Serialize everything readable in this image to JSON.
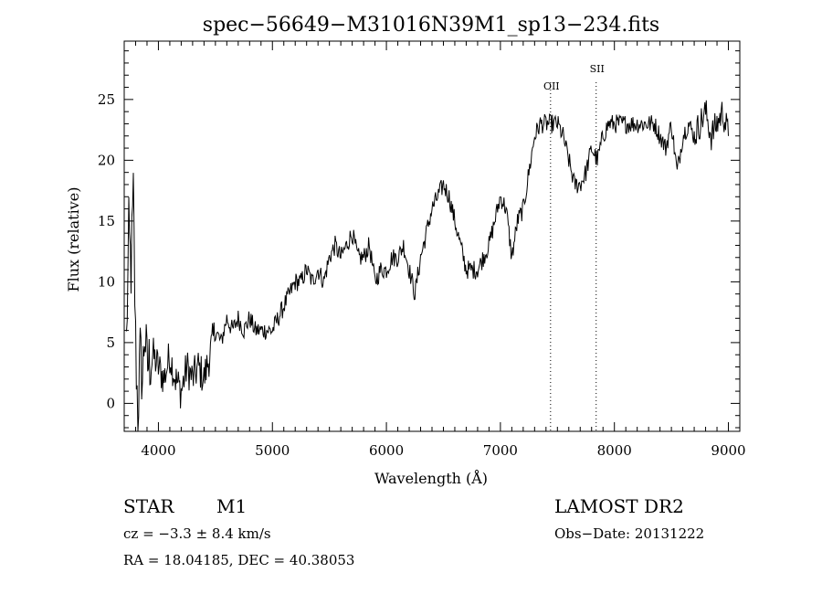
{
  "chart_data": {
    "type": "line",
    "title": "spec−56649−M31016N39M1_sp13−234.fits",
    "xlabel": "Wavelength (Å)",
    "ylabel": "Flux (relative)",
    "xlim": [
      3700,
      9100
    ],
    "ylim": [
      -2.3,
      29.8
    ],
    "xticks": [
      "4000",
      "5000",
      "6000",
      "7000",
      "8000",
      "9000"
    ],
    "xtick_values": [
      4000,
      5000,
      6000,
      7000,
      8000,
      9000
    ],
    "yticks": [
      "0",
      "5",
      "10",
      "15",
      "20",
      "25"
    ],
    "ytick_values": [
      0,
      5,
      10,
      15,
      20,
      25
    ],
    "line_markers": [
      {
        "label": "OII",
        "x": 7440
      },
      {
        "label": "SII",
        "x": 7840
      }
    ],
    "series": [
      {
        "x": [
          3720,
          3740,
          3760,
          3780,
          3800,
          3820,
          3840,
          3860,
          3880,
          3900,
          3950,
          4000,
          4050,
          4100,
          4150,
          4200,
          4250,
          4300,
          4350,
          4400,
          4450,
          4500,
          4550,
          4600,
          4650,
          4700,
          4750,
          4800,
          4850,
          4900,
          4950,
          5000,
          5050,
          5100,
          5150,
          5200,
          5250,
          5300,
          5350,
          5400,
          5450,
          5500,
          5550,
          5600,
          5650,
          5700,
          5750,
          5800,
          5850,
          5900,
          5950,
          6000,
          6050,
          6100,
          6150,
          6200,
          6250,
          6300,
          6350,
          6400,
          6450,
          6500,
          6550,
          6600,
          6650,
          6700,
          6750,
          6800,
          6850,
          6900,
          6950,
          7000,
          7050,
          7100,
          7150,
          7200,
          7250,
          7300,
          7350,
          7400,
          7450,
          7500,
          7550,
          7600,
          7650,
          7700,
          7750,
          7800,
          7850,
          7900,
          7950,
          8000,
          8050,
          8100,
          8150,
          8200,
          8250,
          8300,
          8350,
          8400,
          8450,
          8500,
          8550,
          8600,
          8650,
          8700,
          8750,
          8800,
          8850,
          8900,
          8950,
          9000
        ],
        "y": [
          5,
          14,
          11,
          17,
          5,
          -1,
          4,
          2,
          6,
          3,
          4,
          3,
          2,
          4,
          2,
          1,
          3,
          2,
          3,
          2,
          4,
          6,
          5,
          7,
          6,
          7,
          6,
          7,
          6,
          6,
          6,
          6,
          7,
          8,
          9,
          10,
          10,
          11,
          10,
          11,
          10,
          12,
          13,
          12,
          13,
          14,
          12,
          12,
          13,
          10,
          11,
          11,
          12,
          12,
          13,
          11,
          9,
          12,
          14,
          16,
          17,
          18,
          17,
          15,
          13,
          11,
          11,
          11,
          12,
          13,
          15,
          17,
          16,
          12,
          15,
          16,
          19,
          22,
          23,
          23,
          23,
          23,
          22,
          20,
          18,
          18,
          19,
          21,
          20,
          22,
          23,
          23,
          23,
          23,
          23,
          23,
          23,
          23,
          23,
          22,
          21,
          23,
          19,
          22,
          23,
          22,
          23,
          24,
          22,
          23,
          24,
          22
        ]
      }
    ]
  },
  "footer": {
    "object_type": "STAR",
    "subclass": "M1",
    "survey": "LAMOST DR2",
    "cz": "cz = −3.3 ± 8.4 km/s",
    "obs_date": "Obs−Date: 20131222",
    "coords": "RA =  18.04185, DEC =  40.38053"
  }
}
